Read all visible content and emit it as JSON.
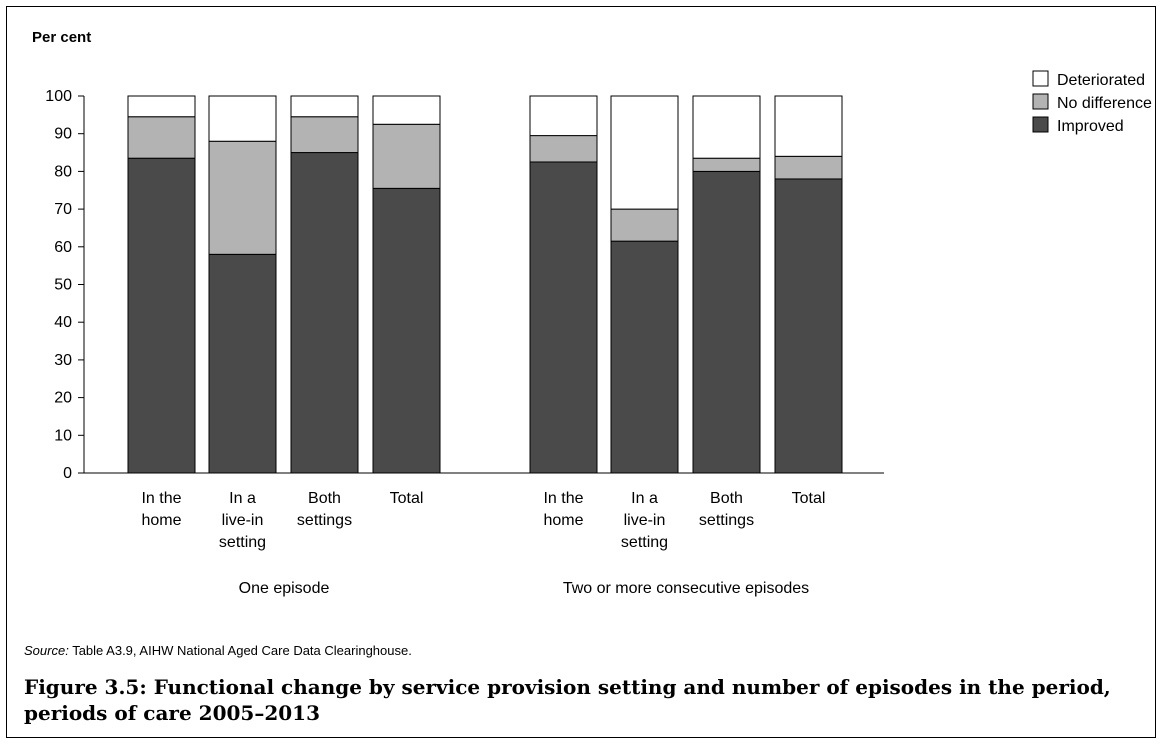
{
  "chart_data": {
    "type": "bar",
    "stacked": true,
    "ylabel": "Per cent",
    "ylim": [
      0,
      100
    ],
    "yticks": [
      0,
      10,
      20,
      30,
      40,
      50,
      60,
      70,
      80,
      90,
      100
    ],
    "grid": false,
    "legend_position": "top-right",
    "groups": [
      {
        "name": "One episode",
        "categories": [
          [
            "In the",
            "home"
          ],
          [
            "In a",
            "live-in",
            "setting"
          ],
          [
            "Both",
            "settings"
          ],
          [
            "Total"
          ]
        ]
      },
      {
        "name": "Two or more consecutive episodes",
        "categories": [
          [
            "In the",
            "home"
          ],
          [
            "In a",
            "live-in",
            "setting"
          ],
          [
            "Both",
            "settings"
          ],
          [
            "Total"
          ]
        ]
      }
    ],
    "series": [
      {
        "name": "Improved",
        "color": "#4a4a4a",
        "values": [
          83.5,
          58,
          85,
          75.5,
          82.5,
          61.5,
          80,
          78
        ]
      },
      {
        "name": "No difference",
        "color": "#b3b3b3",
        "values": [
          11,
          30,
          9.5,
          17,
          7,
          8.5,
          3.5,
          6
        ]
      },
      {
        "name": "Deteriorated",
        "color": "#ffffff",
        "values": [
          5.5,
          12,
          5.5,
          7.5,
          10.5,
          30,
          16.5,
          16
        ]
      }
    ],
    "legend_order": [
      "Deteriorated",
      "No difference",
      "Improved"
    ]
  },
  "source": {
    "label": "Source:",
    "text": " Table A3.9, AIHW National Aged Care Data Clearinghouse."
  },
  "caption": "Figure 3.5: Functional change by service provision setting and number of episodes in the period, periods of care 2005–2013"
}
